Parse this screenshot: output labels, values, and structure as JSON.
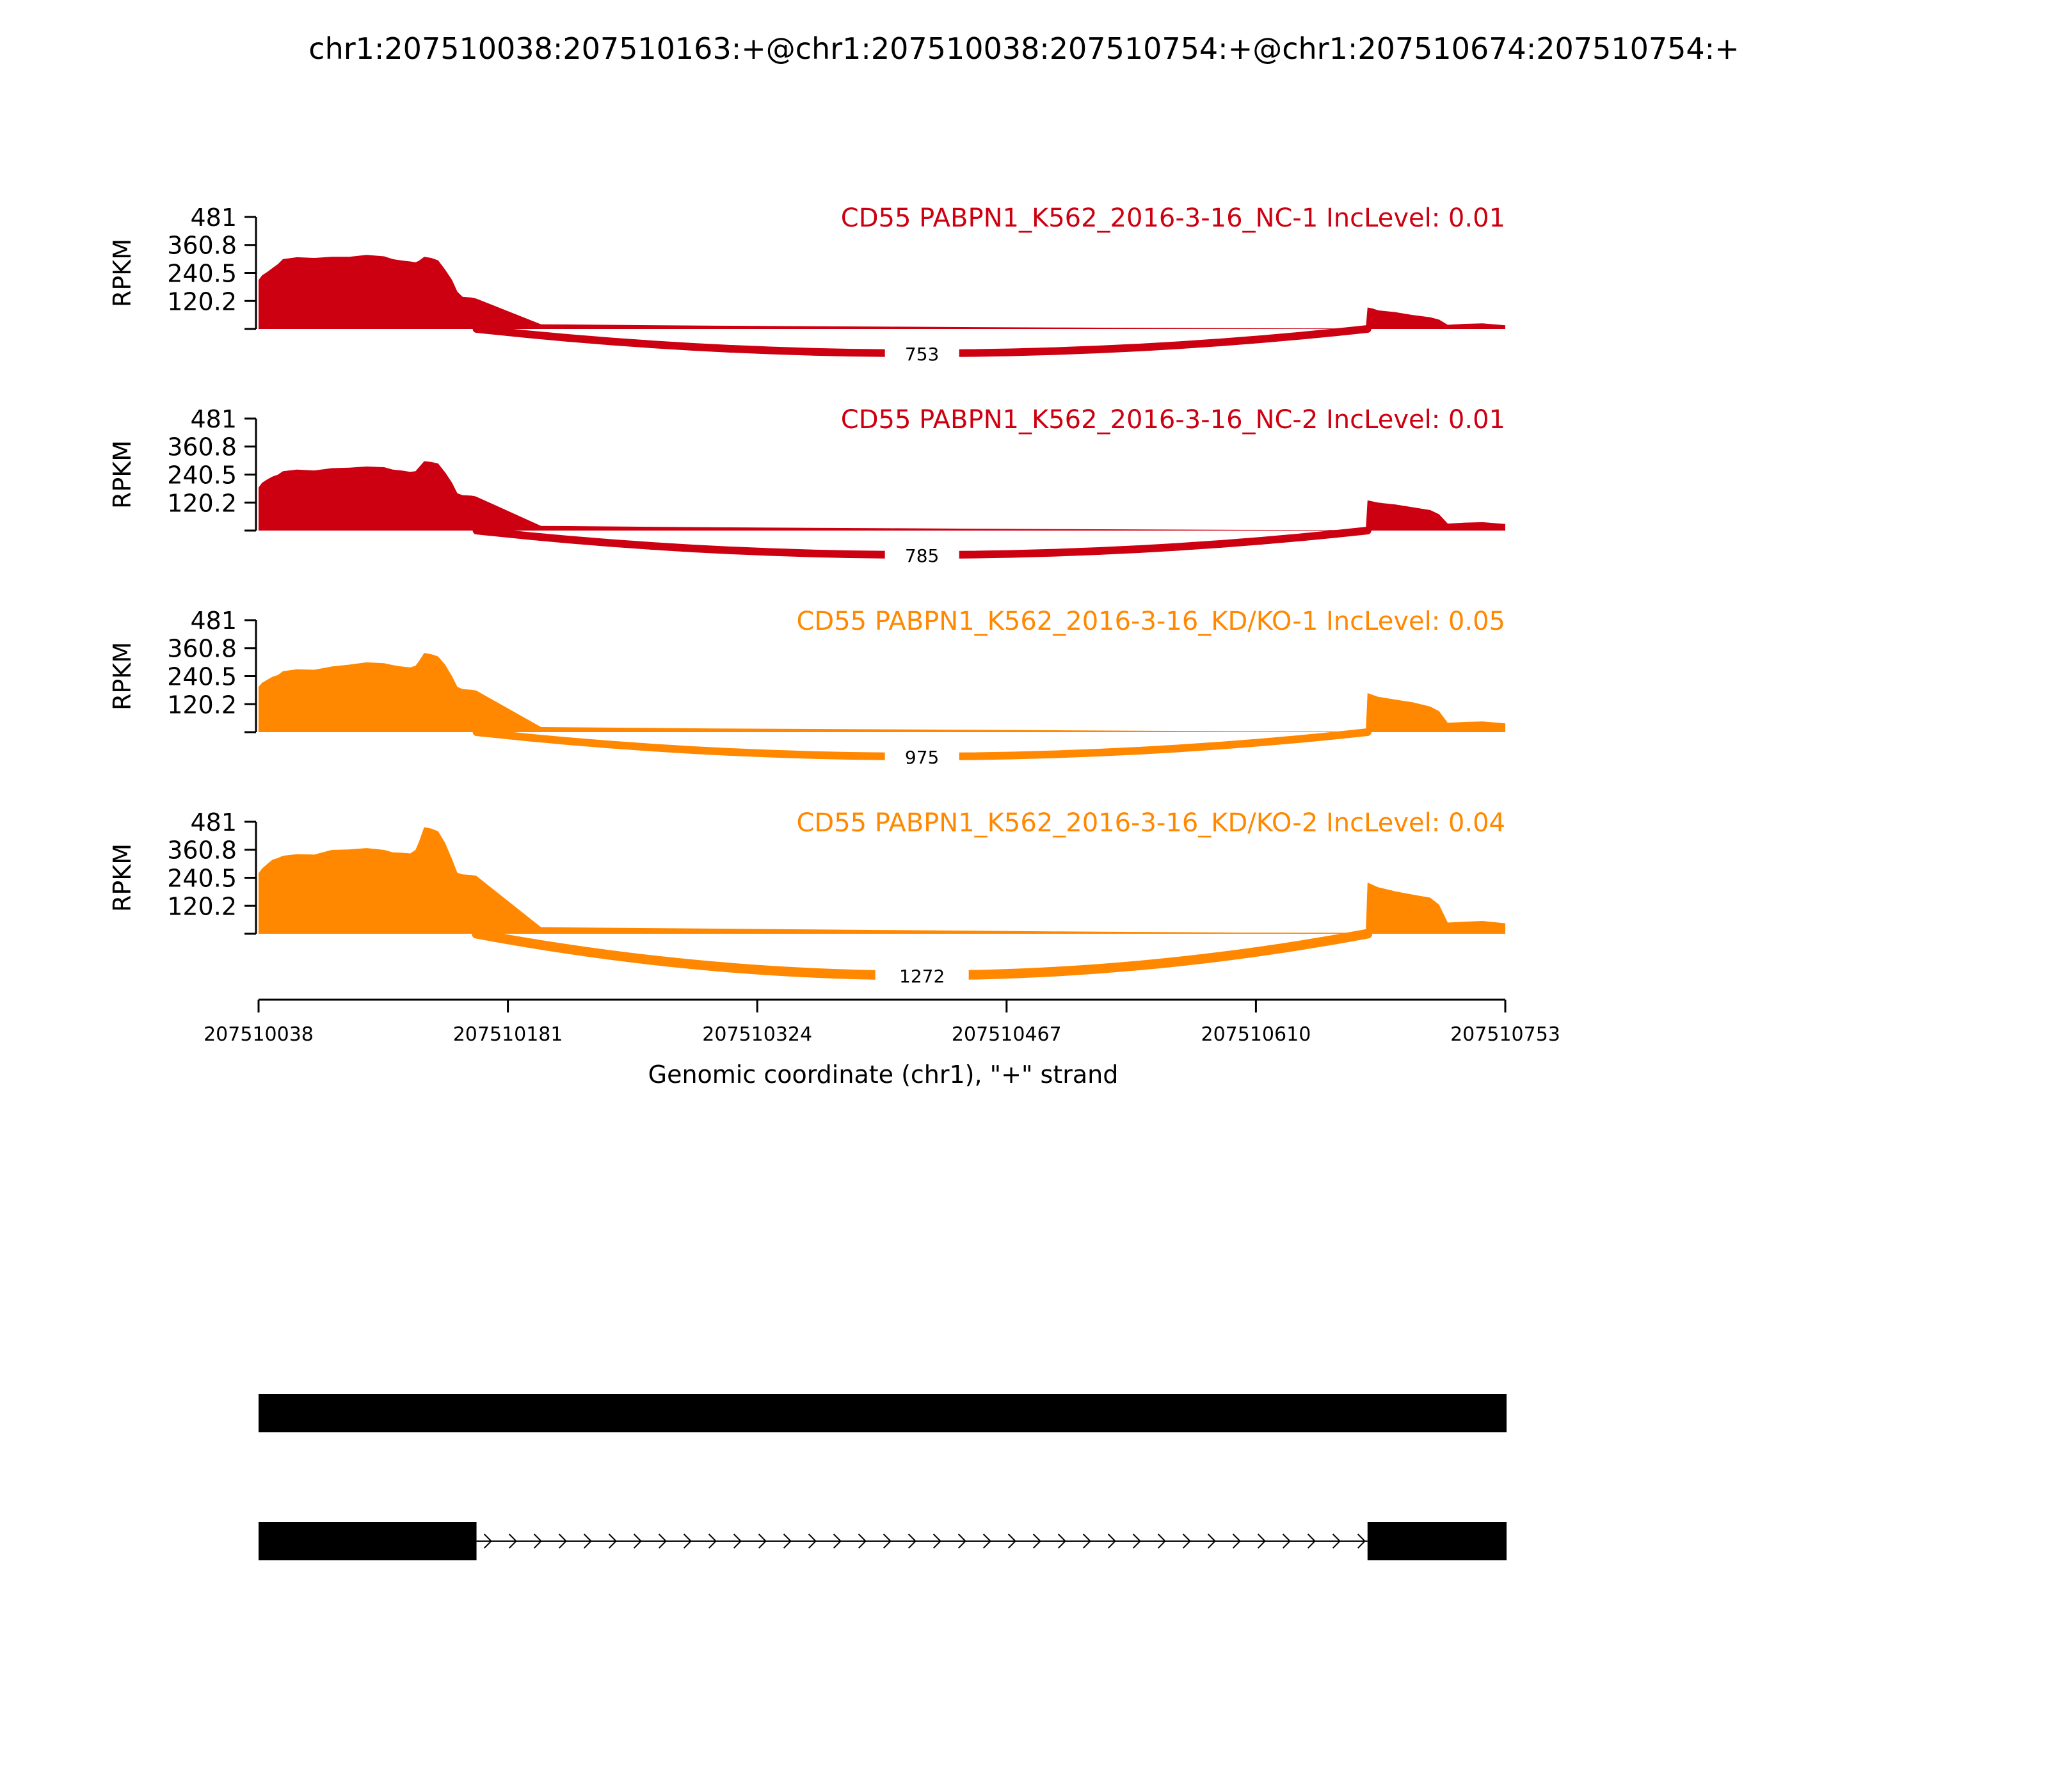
{
  "title": "chr1:207510038:207510163:+@chr1:207510038:207510754:+@chr1:207510674:207510754:+",
  "chart_data": {
    "type": "area",
    "ylabel": "RPKM",
    "ymax": 481,
    "yticks": [
      120.2,
      240.5,
      360.8,
      481
    ],
    "xlabel": "Genomic coordinate (chr1), \"+\" strand",
    "x_range": [
      207510038,
      207510753
    ],
    "xticks": [
      207510038,
      207510181,
      207510324,
      207510467,
      207510610,
      207510753
    ],
    "exon1": [
      207510038,
      207510163
    ],
    "exon2": [
      207510674,
      207510754
    ],
    "tracks": [
      {
        "title": "CD55 PABPN1_K562_2016-3-16_NC-1 IncLevel: 0.01",
        "color": "#CC0011",
        "junction_count": "753",
        "coverage": {
          "x": [
            207510038,
            207510040,
            207510043,
            207510046,
            207510049,
            207510052,
            207510060,
            207510070,
            207510080,
            207510090,
            207510100,
            207510110,
            207510115,
            207510120,
            207510125,
            207510128,
            207510130,
            207510133,
            207510137,
            207510141,
            207510145,
            207510149,
            207510152,
            207510155,
            207510160,
            207510162,
            207510163,
            207510200,
            207510300,
            207510400,
            207510500,
            207510600,
            207510673,
            207510674,
            207510677,
            207510680,
            207510690,
            207510700,
            207510710,
            207510715,
            207510720,
            207510730,
            207510740,
            207510753
          ],
          "y": [
            210,
            230,
            245,
            262,
            278,
            300,
            308,
            305,
            310,
            310,
            318,
            312,
            300,
            294,
            290,
            286,
            293,
            310,
            305,
            295,
            255,
            210,
            160,
            138,
            135,
            132,
            130,
            20,
            14,
            10,
            6,
            3,
            2,
            92,
            88,
            80,
            72,
            60,
            50,
            40,
            18,
            22,
            24,
            16
          ]
        }
      },
      {
        "title": "CD55 PABPN1_K562_2016-3-16_NC-2 IncLevel: 0.01",
        "color": "#CC0011",
        "junction_count": "785",
        "coverage": {
          "x": [
            207510038,
            207510040,
            207510043,
            207510046,
            207510049,
            207510052,
            207510060,
            207510070,
            207510080,
            207510090,
            207510100,
            207510110,
            207510115,
            207510120,
            207510125,
            207510128,
            207510130,
            207510133,
            207510137,
            207510141,
            207510145,
            207510149,
            207510152,
            207510155,
            207510160,
            207510162,
            207510163,
            207510200,
            207510300,
            207510400,
            207510500,
            207510600,
            207510673,
            207510674,
            207510677,
            207510680,
            207510690,
            207510700,
            207510710,
            207510715,
            207510720,
            207510730,
            207510740,
            207510753
          ],
          "y": [
            185,
            205,
            220,
            232,
            240,
            255,
            262,
            258,
            268,
            270,
            275,
            272,
            262,
            258,
            252,
            255,
            272,
            298,
            295,
            288,
            250,
            205,
            160,
            152,
            150,
            148,
            145,
            20,
            14,
            10,
            6,
            3,
            2,
            130,
            125,
            120,
            112,
            100,
            88,
            70,
            30,
            34,
            36,
            28
          ]
        }
      },
      {
        "title": "CD55 PABPN1_K562_2016-3-16_KD/KO-1 IncLevel: 0.05",
        "color": "#FF8800",
        "junction_count": "975",
        "coverage": {
          "x": [
            207510038,
            207510040,
            207510043,
            207510046,
            207510049,
            207510052,
            207510060,
            207510070,
            207510080,
            207510090,
            207510100,
            207510110,
            207510115,
            207510120,
            207510125,
            207510128,
            207510130,
            207510133,
            207510137,
            207510141,
            207510145,
            207510149,
            207510152,
            207510155,
            207510160,
            207510162,
            207510163,
            207510200,
            207510300,
            207510400,
            207510500,
            207510600,
            207510673,
            207510674,
            207510677,
            207510680,
            207510690,
            207510700,
            207510710,
            207510715,
            207510720,
            207510730,
            207510740,
            207510753
          ],
          "y": [
            195,
            212,
            225,
            238,
            245,
            262,
            270,
            268,
            282,
            290,
            300,
            296,
            288,
            282,
            278,
            285,
            305,
            340,
            335,
            325,
            290,
            240,
            195,
            185,
            182,
            180,
            178,
            22,
            16,
            12,
            8,
            4,
            3,
            168,
            160,
            152,
            140,
            128,
            110,
            90,
            40,
            44,
            46,
            38
          ]
        }
      },
      {
        "title": "CD55 PABPN1_K562_2016-3-16_KD/KO-2 IncLevel: 0.04",
        "color": "#FF8800",
        "junction_count": "1272",
        "coverage": {
          "x": [
            207510038,
            207510040,
            207510043,
            207510046,
            207510049,
            207510052,
            207510060,
            207510070,
            207510080,
            207510090,
            207510100,
            207510110,
            207510115,
            207510120,
            207510125,
            207510128,
            207510130,
            207510133,
            207510137,
            207510141,
            207510145,
            207510149,
            207510152,
            207510155,
            207510160,
            207510162,
            207510163,
            207510200,
            207510300,
            207510400,
            207510500,
            207510600,
            207510673,
            207510674,
            207510677,
            207510680,
            207510690,
            207510700,
            207510710,
            207510715,
            207510720,
            207510730,
            207510740,
            207510753
          ],
          "y": [
            260,
            280,
            300,
            318,
            325,
            335,
            342,
            340,
            360,
            362,
            368,
            360,
            350,
            348,
            345,
            360,
            395,
            458,
            452,
            440,
            390,
            320,
            262,
            255,
            252,
            250,
            248,
            28,
            22,
            16,
            10,
            5,
            4,
            220,
            210,
            200,
            182,
            168,
            155,
            125,
            48,
            52,
            55,
            45
          ]
        }
      }
    ],
    "transcripts": [
      {
        "exons": [
          [
            207510038,
            207510754
          ]
        ]
      },
      {
        "exons": [
          [
            207510038,
            207510163
          ],
          [
            207510674,
            207510754
          ]
        ]
      }
    ]
  }
}
